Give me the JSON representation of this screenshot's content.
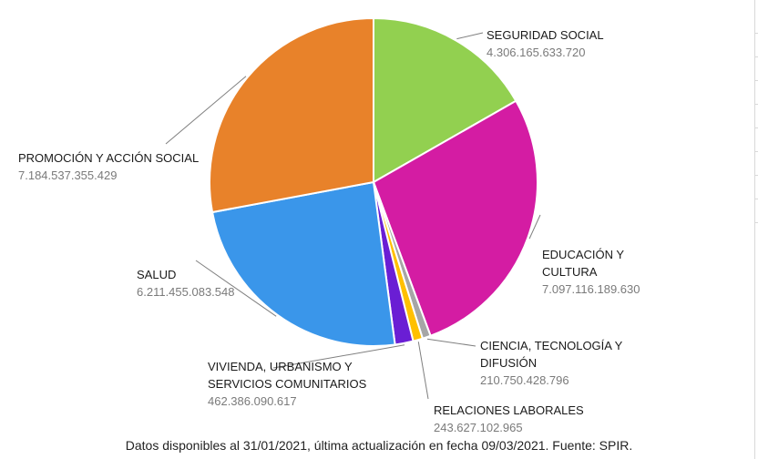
{
  "chart_data": {
    "type": "pie",
    "title": "",
    "slices": [
      {
        "label": "SEGURIDAD SOCIAL",
        "value_text": "4.306.165.633.720",
        "value": 4306165633720,
        "color": "#92d050"
      },
      {
        "label": "EDUCACIÓN Y CULTURA",
        "label_lines": [
          "EDUCACIÓN Y",
          "CULTURA"
        ],
        "value_text": "7.097.116.189.630",
        "value": 7097116189630,
        "color": "#d41ca3"
      },
      {
        "label": "CIENCIA, TECNOLOGÍA Y DIFUSIÓN",
        "label_lines": [
          "CIENCIA, TECNOLOGÍA Y",
          "DIFUSIÓN"
        ],
        "value_text": "210.750.428.796",
        "value": 210750428796,
        "color": "#a6a6a6"
      },
      {
        "label": "RELACIONES LABORALES",
        "value_text": "243.627.102.965",
        "value": 243627102965,
        "color": "#ffc000"
      },
      {
        "label": "VIVIENDA, URBANISMO Y SERVICIOS COMUNITARIOS",
        "label_lines": [
          "VIVIENDA, URBANISMO Y",
          "SERVICIOS COMUNITARIOS"
        ],
        "value_text": "462.386.090.617",
        "value": 462386090617,
        "color": "#6a1ed4"
      },
      {
        "label": "SALUD",
        "value_text": "6.211.455.083.548",
        "value": 6211455083548,
        "color": "#3a96ea"
      },
      {
        "label": "PROMOCIÓN Y ACCIÓN SOCIAL",
        "value_text": "7.184.537.355.429",
        "value": 7184537355429,
        "color": "#e8822a"
      }
    ]
  },
  "footer": {
    "note": "Datos disponibles al 31/01/2021, última actualización en fecha 09/03/2021. Fuente: SPIR."
  },
  "colors": {
    "leader_line": "#7f7f7f",
    "slice_border": "#ffffff"
  }
}
